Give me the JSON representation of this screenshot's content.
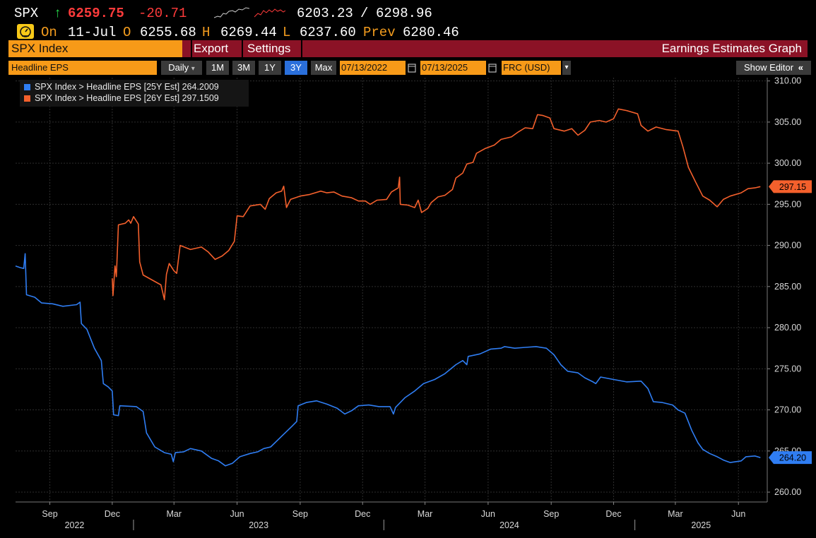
{
  "ticker": {
    "symbol": "SPX",
    "arrow": "↑",
    "last": "6259.75",
    "change": "-20.71",
    "range_low": "6203.23",
    "range_sep": "/",
    "range_high": "6298.96",
    "on_label": "On",
    "date": "11-Jul",
    "open_label": "O",
    "open": "6255.68",
    "high_label": "H",
    "high": "6269.44",
    "low_label": "L",
    "low": "6237.60",
    "prev_label": "Prev",
    "prev": "6280.46"
  },
  "titlebar": {
    "security": "SPX Index",
    "export": "Export",
    "settings": "Settings",
    "function_title": "Earnings Estimates Graph"
  },
  "controls": {
    "field": "Headline EPS",
    "periodicity": "Daily",
    "dropdown_arrow": "▾",
    "ranges": [
      "1M",
      "3M",
      "1Y",
      "3Y",
      "Max"
    ],
    "active_range": "3Y",
    "start_date": "07/13/2022",
    "end_date": "07/13/2025",
    "currency": "FRC (USD)",
    "calendar_icon": "calendar-icon",
    "show_editor": "Show Editor",
    "collapse_glyph": "«"
  },
  "colors": {
    "orange_accent": "#f79a18",
    "title_bar": "#8b1226",
    "series_25y": "#2f7df2",
    "series_26y": "#f4602c"
  },
  "chart_data": {
    "type": "line",
    "x_axis": {
      "month_ticks": [
        "Sep",
        "Dec",
        "Mar",
        "Jun",
        "Sep",
        "Dec",
        "Mar",
        "Jun",
        "Sep",
        "Dec",
        "Mar",
        "Jun"
      ],
      "month_tick_dates": [
        "2022-09-01",
        "2022-12-01",
        "2023-03-01",
        "2023-06-01",
        "2023-09-01",
        "2023-12-01",
        "2024-03-01",
        "2024-06-01",
        "2024-09-01",
        "2024-12-01",
        "2025-03-01",
        "2025-06-01"
      ],
      "year_labels": [
        "2022",
        "2023",
        "2024",
        "2025"
      ],
      "range": [
        "2022-07-13",
        "2025-07-13"
      ]
    },
    "y_axis": {
      "ticks": [
        "260.00",
        "265.00",
        "270.00",
        "275.00",
        "280.00",
        "285.00",
        "290.00",
        "295.00",
        "300.00",
        "305.00",
        "310.00"
      ],
      "ylim": [
        258.8,
        310.4
      ]
    },
    "grid": true,
    "legend_position": "top-left",
    "series": [
      {
        "name": "SPX Index > Headline EPS [25Y Est]",
        "legend_value": "264.2009",
        "last_label": "264.20",
        "color": "#2f7df2",
        "points": [
          [
            "2022-07-13",
            287.5
          ],
          [
            "2022-07-20",
            287.3
          ],
          [
            "2022-07-25",
            287.2
          ],
          [
            "2022-07-27",
            289.0
          ],
          [
            "2022-07-29",
            284.0
          ],
          [
            "2022-08-10",
            283.7
          ],
          [
            "2022-08-20",
            283.0
          ],
          [
            "2022-09-05",
            282.9
          ],
          [
            "2022-09-20",
            282.6
          ],
          [
            "2022-10-10",
            282.8
          ],
          [
            "2022-10-15",
            283.1
          ],
          [
            "2022-10-17",
            280.5
          ],
          [
            "2022-10-25",
            279.8
          ],
          [
            "2022-11-05",
            277.5
          ],
          [
            "2022-11-15",
            276.0
          ],
          [
            "2022-11-18",
            273.2
          ],
          [
            "2022-11-25",
            272.8
          ],
          [
            "2022-12-01",
            272.3
          ],
          [
            "2022-12-03",
            269.4
          ],
          [
            "2022-12-10",
            269.3
          ],
          [
            "2022-12-12",
            270.5
          ],
          [
            "2023-01-05",
            270.4
          ],
          [
            "2023-01-15",
            269.8
          ],
          [
            "2023-01-20",
            267.2
          ],
          [
            "2023-02-01",
            265.5
          ],
          [
            "2023-02-15",
            264.8
          ],
          [
            "2023-02-25",
            264.6
          ],
          [
            "2023-02-28",
            263.7
          ],
          [
            "2023-03-03",
            264.8
          ],
          [
            "2023-03-15",
            264.9
          ],
          [
            "2023-03-25",
            265.3
          ],
          [
            "2023-04-10",
            265.0
          ],
          [
            "2023-04-25",
            264.1
          ],
          [
            "2023-05-05",
            263.8
          ],
          [
            "2023-05-15",
            263.2
          ],
          [
            "2023-05-25",
            263.5
          ],
          [
            "2023-06-05",
            264.3
          ],
          [
            "2023-06-20",
            264.7
          ],
          [
            "2023-07-01",
            264.9
          ],
          [
            "2023-07-10",
            265.3
          ],
          [
            "2023-07-20",
            265.5
          ],
          [
            "2023-08-05",
            266.8
          ],
          [
            "2023-08-20",
            268.0
          ],
          [
            "2023-08-27",
            268.6
          ],
          [
            "2023-08-29",
            270.5
          ],
          [
            "2023-09-10",
            270.9
          ],
          [
            "2023-09-25",
            271.1
          ],
          [
            "2023-10-10",
            270.7
          ],
          [
            "2023-10-25",
            270.2
          ],
          [
            "2023-11-05",
            269.5
          ],
          [
            "2023-11-15",
            269.9
          ],
          [
            "2023-11-25",
            270.5
          ],
          [
            "2023-12-10",
            270.6
          ],
          [
            "2023-12-25",
            270.4
          ],
          [
            "2024-01-10",
            270.4
          ],
          [
            "2024-01-15",
            269.5
          ],
          [
            "2024-01-18",
            270.3
          ],
          [
            "2024-02-01",
            271.5
          ],
          [
            "2024-02-15",
            272.3
          ],
          [
            "2024-02-28",
            273.2
          ],
          [
            "2024-03-15",
            273.7
          ],
          [
            "2024-03-30",
            274.4
          ],
          [
            "2024-04-15",
            275.5
          ],
          [
            "2024-04-25",
            276.0
          ],
          [
            "2024-05-01",
            275.5
          ],
          [
            "2024-05-03",
            276.5
          ],
          [
            "2024-05-20",
            276.8
          ],
          [
            "2024-06-05",
            277.4
          ],
          [
            "2024-06-20",
            277.5
          ],
          [
            "2024-06-25",
            277.7
          ],
          [
            "2024-07-10",
            277.5
          ],
          [
            "2024-07-25",
            277.6
          ],
          [
            "2024-08-10",
            277.7
          ],
          [
            "2024-08-25",
            277.5
          ],
          [
            "2024-09-05",
            276.7
          ],
          [
            "2024-09-15",
            275.5
          ],
          [
            "2024-09-25",
            274.7
          ],
          [
            "2024-10-10",
            274.5
          ],
          [
            "2024-10-20",
            273.9
          ],
          [
            "2024-11-01",
            273.4
          ],
          [
            "2024-11-05",
            273.2
          ],
          [
            "2024-11-12",
            274.0
          ],
          [
            "2024-12-01",
            273.7
          ],
          [
            "2024-12-20",
            273.4
          ],
          [
            "2025-01-10",
            273.5
          ],
          [
            "2025-01-20",
            272.6
          ],
          [
            "2025-01-28",
            271.0
          ],
          [
            "2025-02-10",
            270.9
          ],
          [
            "2025-02-25",
            270.6
          ],
          [
            "2025-03-05",
            270.0
          ],
          [
            "2025-03-15",
            269.6
          ],
          [
            "2025-03-25",
            267.5
          ],
          [
            "2025-04-03",
            266.0
          ],
          [
            "2025-04-10",
            265.2
          ],
          [
            "2025-04-20",
            264.7
          ],
          [
            "2025-05-01",
            264.3
          ],
          [
            "2025-05-10",
            263.9
          ],
          [
            "2025-05-20",
            263.6
          ],
          [
            "2025-06-05",
            263.8
          ],
          [
            "2025-06-12",
            264.3
          ],
          [
            "2025-06-25",
            264.4
          ],
          [
            "2025-07-03",
            264.2
          ]
        ]
      },
      {
        "name": "SPX Index > Headline EPS [26Y Est]",
        "legend_value": "297.1509",
        "last_label": "297.15",
        "color": "#f4602c",
        "points": [
          [
            "2022-12-01",
            286.0
          ],
          [
            "2022-12-02",
            283.9
          ],
          [
            "2022-12-05",
            287.5
          ],
          [
            "2022-12-07",
            286.2
          ],
          [
            "2022-12-10",
            292.5
          ],
          [
            "2022-12-20",
            292.7
          ],
          [
            "2022-12-25",
            293.1
          ],
          [
            "2022-12-28",
            292.7
          ],
          [
            "2023-01-01",
            293.5
          ],
          [
            "2023-01-08",
            292.6
          ],
          [
            "2023-01-10",
            288.0
          ],
          [
            "2023-01-15",
            286.4
          ],
          [
            "2023-01-28",
            285.8
          ],
          [
            "2023-02-10",
            285.2
          ],
          [
            "2023-02-15",
            283.4
          ],
          [
            "2023-02-18",
            286.5
          ],
          [
            "2023-02-22",
            287.8
          ],
          [
            "2023-03-01",
            286.9
          ],
          [
            "2023-03-05",
            286.6
          ],
          [
            "2023-03-10",
            290.0
          ],
          [
            "2023-03-25",
            289.5
          ],
          [
            "2023-04-10",
            289.8
          ],
          [
            "2023-04-20",
            289.2
          ],
          [
            "2023-04-30",
            288.3
          ],
          [
            "2023-05-10",
            288.7
          ],
          [
            "2023-05-20",
            289.4
          ],
          [
            "2023-05-28",
            290.5
          ],
          [
            "2023-06-01",
            293.6
          ],
          [
            "2023-06-10",
            293.5
          ],
          [
            "2023-06-20",
            294.8
          ],
          [
            "2023-07-05",
            295.0
          ],
          [
            "2023-07-12",
            294.4
          ],
          [
            "2023-07-18",
            295.7
          ],
          [
            "2023-07-28",
            296.4
          ],
          [
            "2023-08-05",
            296.6
          ],
          [
            "2023-08-08",
            297.2
          ],
          [
            "2023-08-12",
            294.6
          ],
          [
            "2023-08-18",
            295.6
          ],
          [
            "2023-09-01",
            296.0
          ],
          [
            "2023-09-15",
            296.2
          ],
          [
            "2023-10-01",
            296.6
          ],
          [
            "2023-10-10",
            296.4
          ],
          [
            "2023-10-20",
            296.5
          ],
          [
            "2023-11-01",
            296.0
          ],
          [
            "2023-11-15",
            295.8
          ],
          [
            "2023-11-25",
            295.4
          ],
          [
            "2023-12-05",
            295.4
          ],
          [
            "2023-12-12",
            295.0
          ],
          [
            "2023-12-22",
            295.5
          ],
          [
            "2024-01-05",
            295.6
          ],
          [
            "2024-01-12",
            296.5
          ],
          [
            "2024-01-22",
            297.0
          ],
          [
            "2024-01-24",
            298.3
          ],
          [
            "2024-01-25",
            295.0
          ],
          [
            "2024-02-05",
            294.9
          ],
          [
            "2024-02-15",
            294.6
          ],
          [
            "2024-02-20",
            295.5
          ],
          [
            "2024-02-25",
            294.0
          ],
          [
            "2024-03-05",
            294.5
          ],
          [
            "2024-03-10",
            295.2
          ],
          [
            "2024-03-20",
            295.9
          ],
          [
            "2024-03-30",
            296.1
          ],
          [
            "2024-04-10",
            296.8
          ],
          [
            "2024-04-15",
            298.2
          ],
          [
            "2024-04-25",
            298.8
          ],
          [
            "2024-05-01",
            299.9
          ],
          [
            "2024-05-10",
            300.1
          ],
          [
            "2024-05-15",
            301.2
          ],
          [
            "2024-05-28",
            301.8
          ],
          [
            "2024-06-10",
            302.2
          ],
          [
            "2024-06-20",
            302.9
          ],
          [
            "2024-07-05",
            303.2
          ],
          [
            "2024-07-15",
            303.8
          ],
          [
            "2024-07-25",
            304.3
          ],
          [
            "2024-08-05",
            304.2
          ],
          [
            "2024-08-12",
            305.9
          ],
          [
            "2024-08-20",
            305.8
          ],
          [
            "2024-08-30",
            305.5
          ],
          [
            "2024-09-05",
            304.2
          ],
          [
            "2024-09-20",
            303.9
          ],
          [
            "2024-10-01",
            304.2
          ],
          [
            "2024-10-10",
            303.4
          ],
          [
            "2024-10-20",
            304.0
          ],
          [
            "2024-10-28",
            305.0
          ],
          [
            "2024-11-10",
            305.2
          ],
          [
            "2024-11-20",
            305.0
          ],
          [
            "2024-12-01",
            305.4
          ],
          [
            "2024-12-08",
            306.6
          ],
          [
            "2024-12-20",
            306.4
          ],
          [
            "2025-01-05",
            306.0
          ],
          [
            "2025-01-10",
            304.6
          ],
          [
            "2025-01-20",
            303.9
          ],
          [
            "2025-02-01",
            304.4
          ],
          [
            "2025-02-15",
            304.1
          ],
          [
            "2025-03-05",
            303.9
          ],
          [
            "2025-03-12",
            302.0
          ],
          [
            "2025-03-20",
            299.5
          ],
          [
            "2025-03-30",
            297.8
          ],
          [
            "2025-04-10",
            296.0
          ],
          [
            "2025-04-20",
            295.5
          ],
          [
            "2025-05-01",
            294.7
          ],
          [
            "2025-05-10",
            295.6
          ],
          [
            "2025-05-20",
            296.0
          ],
          [
            "2025-06-05",
            296.4
          ],
          [
            "2025-06-15",
            296.9
          ],
          [
            "2025-06-25",
            297.0
          ],
          [
            "2025-07-03",
            297.15
          ]
        ]
      }
    ]
  }
}
